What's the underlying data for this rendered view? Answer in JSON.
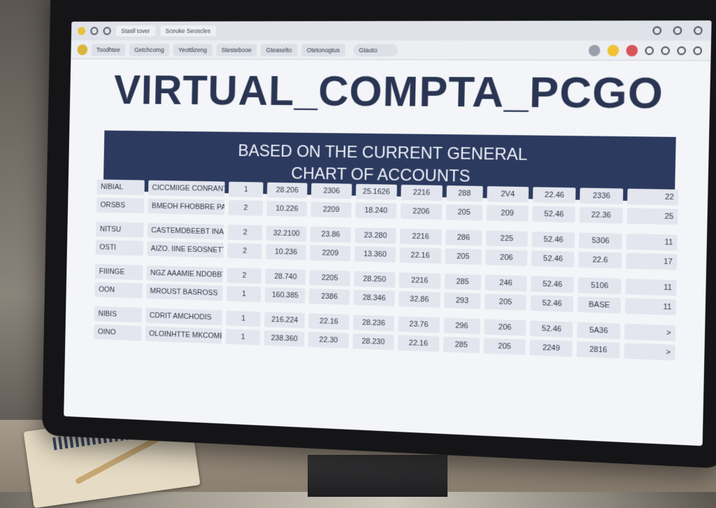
{
  "browser": {
    "tabs": [
      "Stasll tover",
      "Sceuke Seoscles"
    ],
    "toolbar_items": [
      "Toodhtee",
      "Getchcomg",
      "Yeottlizeng",
      "Stestebooe",
      "Gteaselto",
      "Otetonogtus"
    ],
    "search": "Gtaoto"
  },
  "page": {
    "title": "VIRTUAL_COMPTA_PCGO",
    "subtitle_line1": "BASED ON THE CURRENT GENERAL",
    "subtitle_line2": "CHART OF ACCOUNTS"
  },
  "table": {
    "rows": [
      [
        "NIBIAL",
        "CICCMIIGE CONRANTS",
        "1",
        "28.206",
        "2306",
        "25.1626",
        "2216",
        "288",
        "2V4",
        "22.46",
        "2336",
        "22"
      ],
      [
        "ORSBS",
        "BMEOH FHOBBRE PANONWS",
        "2",
        "10.226",
        "2209",
        "18.240",
        "2206",
        "205",
        "209",
        "52.46",
        "22.36",
        "25"
      ],
      [
        "NITSU",
        "CASTEMDBEEBT INANSTS",
        "2",
        "32.2100",
        "23.86",
        "23.280",
        "2216",
        "286",
        "225",
        "52.46",
        "5306",
        "11"
      ],
      [
        "OSTI",
        "AIZO. IINE ESOSNETT",
        "2",
        "10.236",
        "2209",
        "13.360",
        "22.16",
        "205",
        "206",
        "52.46",
        "22.6",
        "17"
      ],
      [
        "FIIINGE",
        "NGZ AAAMIE NDOBBTS",
        "2",
        "28.740",
        "2205",
        "28.250",
        "2216",
        "285",
        "246",
        "52.46",
        "5106",
        "11"
      ],
      [
        "OON",
        "MROUST BASROSS",
        "1",
        "160.385",
        "2386",
        "28.346",
        "32.86",
        "293",
        "205",
        "52.46",
        "BASE",
        "11"
      ],
      [
        "NIBIS",
        "CDRIT AMCHODIS",
        "1",
        "216.224",
        "22.16",
        "28.236",
        "23.76",
        "296",
        "206",
        "52.46",
        "5A36",
        ">"
      ],
      [
        "OINO",
        "OLOINHTTE MKCOMEEPINGS",
        "1",
        "238.360",
        "22.30",
        "28.230",
        "22.16",
        "285",
        "205",
        "2249",
        "2816",
        ">"
      ]
    ]
  }
}
